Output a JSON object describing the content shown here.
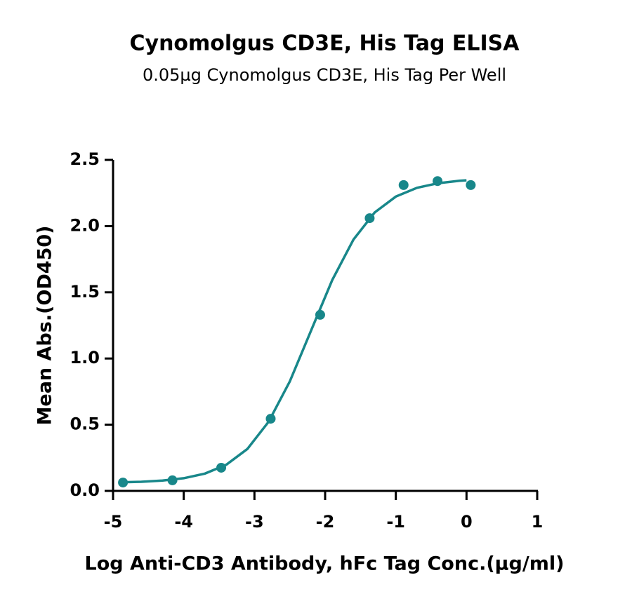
{
  "chart_data": {
    "type": "scatter",
    "title": "Cynomolgus CD3E, His Tag ELISA",
    "subtitle": "0.05µg Cynomolgus CD3E, His Tag Per Well",
    "x_label": "Log Anti-CD3 Antibody, hFc Tag Conc.(µg/ml)",
    "y_label": "Mean Abs.(OD450)",
    "color": "#18878a",
    "points": {
      "x": [
        -4.86,
        -4.16,
        -3.47,
        -2.77,
        -2.07,
        -1.37,
        -0.89,
        -0.41,
        0.06
      ],
      "values": [
        0.063,
        0.08,
        0.175,
        0.545,
        1.33,
        2.06,
        2.31,
        2.34,
        2.31
      ]
    },
    "curve": {
      "x": [
        -4.9,
        -4.6,
        -4.3,
        -4.0,
        -3.7,
        -3.4,
        -3.1,
        -2.8,
        -2.5,
        -2.2,
        -1.9,
        -1.6,
        -1.3,
        -1.0,
        -0.7,
        -0.4,
        -0.1,
        0.0
      ],
      "values": [
        0.065,
        0.069,
        0.078,
        0.096,
        0.131,
        0.197,
        0.317,
        0.522,
        0.827,
        1.21,
        1.592,
        1.898,
        2.103,
        2.223,
        2.289,
        2.324,
        2.342,
        2.346
      ]
    },
    "xlim": [
      -5,
      1
    ],
    "ylim": [
      0,
      2.5
    ],
    "xticks": [
      -5,
      -4,
      -3,
      -2,
      -1,
      0,
      1
    ],
    "yticks": [
      {
        "value": 0,
        "label": "0.0"
      },
      0.5,
      {
        "value": 1,
        "label": "1.0"
      },
      1.5,
      {
        "value": 2,
        "label": "2.0"
      },
      2.5
    ],
    "grid": false
  }
}
